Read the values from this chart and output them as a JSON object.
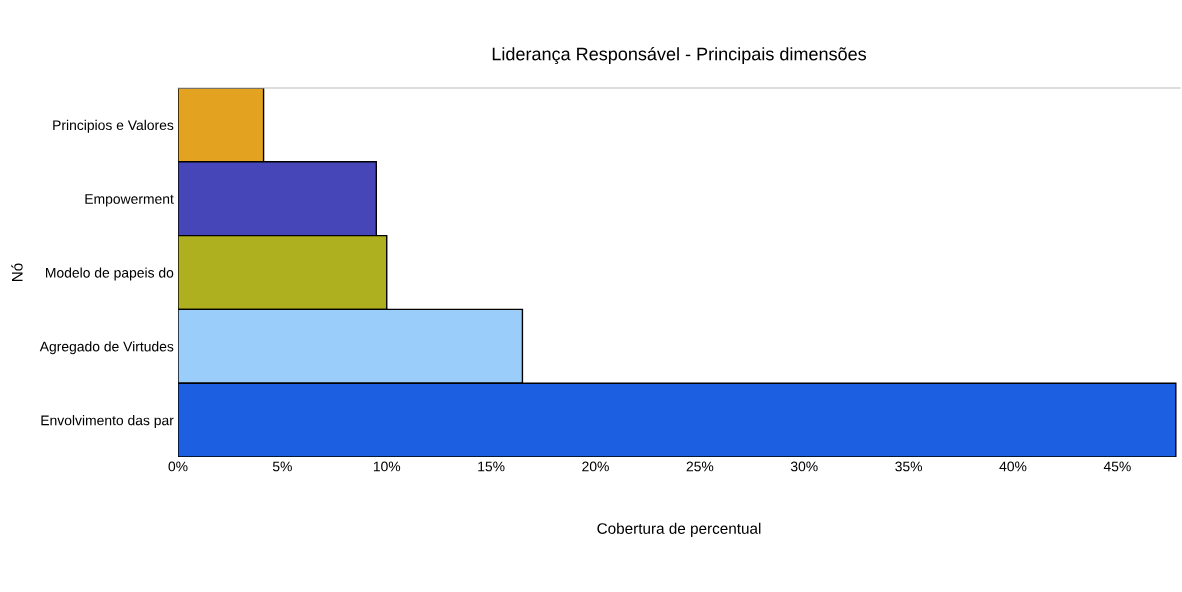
{
  "chart_data": {
    "type": "bar",
    "orientation": "horizontal",
    "title": "Liderança Responsável - Principais dimensões",
    "xlabel": "Cobertura de percentual",
    "ylabel": "Nó",
    "categories": [
      "Principios e Valores",
      "Empowerment",
      "Modelo de papeis do",
      "Agregado de Virtudes",
      "Envolvimento das par"
    ],
    "values": [
      4.1,
      9.5,
      10.0,
      16.5,
      47.8
    ],
    "colors": [
      "#e3a21f",
      "#4646b8",
      "#afb01f",
      "#9bcdfb",
      "#1c5fe0"
    ],
    "xlim": [
      0,
      48
    ],
    "xticks": [
      {
        "value": 0,
        "label": "0%"
      },
      {
        "value": 5,
        "label": "5%"
      },
      {
        "value": 10,
        "label": "10%"
      },
      {
        "value": 15,
        "label": "15%"
      },
      {
        "value": 20,
        "label": "20%"
      },
      {
        "value": 25,
        "label": "25%"
      },
      {
        "value": 30,
        "label": "30%"
      },
      {
        "value": 35,
        "label": "35%"
      },
      {
        "value": 40,
        "label": "40%"
      },
      {
        "value": 45,
        "label": "45%"
      }
    ],
    "grid": false,
    "legend": false
  }
}
